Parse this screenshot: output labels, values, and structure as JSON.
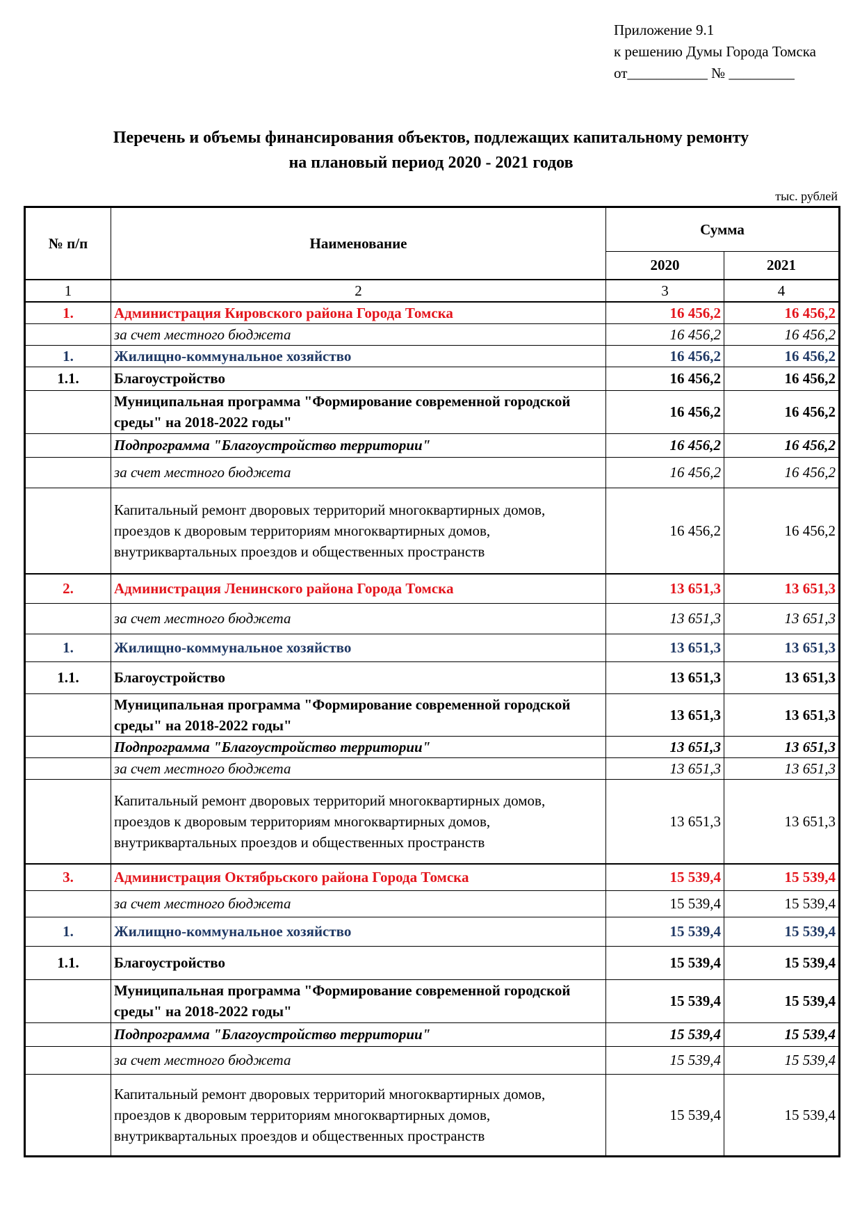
{
  "appendix": {
    "line1": "Приложение 9.1",
    "line2": "к решению Думы Города Томска",
    "line3": "от___________ № _________"
  },
  "title": {
    "line1": "Перечень и объемы финансирования объектов, подлежащих капитальному ремонту",
    "line2": "на плановый период 2020 - 2021 годов"
  },
  "unit": "тыс. рублей",
  "header": {
    "num": "№ п/п",
    "name": "Наименование",
    "sum": "Сумма",
    "y2020": "2020",
    "y2021": "2021",
    "c1": "1",
    "c2": "2",
    "c3": "3",
    "c4": "4"
  },
  "rows": [
    {
      "style": "red",
      "num": "1.",
      "name": "Администрация Кировского района Города Томска",
      "v2020": "16 456,2",
      "v2021": "16 456,2",
      "h": 28
    },
    {
      "style": "it",
      "num": "",
      "name": "за счет местного бюджета",
      "v2020": "16 456,2",
      "v2021": "16 456,2",
      "h": 28
    },
    {
      "style": "blue",
      "num": "1.",
      "name": "Жилищно-коммунальное хозяйство",
      "v2020": "16 456,2",
      "v2021": "16 456,2",
      "h": 28
    },
    {
      "style": "bold",
      "num": "1.1.",
      "name": "Благоустройство",
      "v2020": "16 456,2",
      "v2021": "16 456,2",
      "h": 34
    },
    {
      "style": "bold",
      "num": "",
      "name": "Муниципальная программа \"Формирование современной городской среды\" на 2018-2022 годы\"",
      "v2020": "16 456,2",
      "v2021": "16 456,2",
      "h": 62
    },
    {
      "style": "bi",
      "num": "",
      "name": "Подпрограмма \"Благоустройство территории\"",
      "v2020": "16 456,2",
      "v2021": "16 456,2",
      "h": 34
    },
    {
      "style": "it",
      "num": "",
      "name": "за счет местного бюджета",
      "v2020": "16 456,2",
      "v2021": "16 456,2",
      "h": 44
    },
    {
      "style": "plain",
      "num": "",
      "name": "Капитальный ремонт дворовых территорий многоквартирных домов, проездов к дворовым территориям многоквартирных домов, внутриквартальных проездов и общественных пространств",
      "v2020": "16 456,2",
      "v2021": "16 456,2",
      "h": 124
    },
    {
      "style": "red",
      "num": "2.",
      "name": "Администрация Ленинского района Города Томска",
      "v2020": "13 651,3",
      "v2021": "13 651,3",
      "h": 42
    },
    {
      "style": "it",
      "num": "",
      "name": "за счет местного бюджета",
      "v2020": "13 651,3",
      "v2021": "13 651,3",
      "h": 44
    },
    {
      "style": "blue",
      "num": "1.",
      "name": "Жилищно-коммунальное хозяйство",
      "v2020": "13 651,3",
      "v2021": "13 651,3",
      "h": 40
    },
    {
      "style": "bold",
      "num": "1.1.",
      "name": "Благоустройство",
      "v2020": "13 651,3",
      "v2021": "13 651,3",
      "h": 46
    },
    {
      "style": "bold",
      "num": "",
      "name": "Муниципальная программа \"Формирование современной городской среды\" на 2018-2022 годы\"",
      "v2020": "13 651,3",
      "v2021": "13 651,3",
      "h": 58
    },
    {
      "style": "bi",
      "num": "",
      "name": "Подпрограмма \"Благоустройство территории\"",
      "v2020": "13 651,3",
      "v2021": "13 651,3",
      "h": 30
    },
    {
      "style": "it",
      "num": "",
      "name": "за счет местного бюджета",
      "v2020": "13 651,3",
      "v2021": "13 651,3",
      "h": 28
    },
    {
      "style": "plain",
      "num": "",
      "name": "Капитальный ремонт дворовых территорий многоквартирных домов, проездов к дворовым территориям многоквартирных домов, внутриквартальных проездов и общественных пространств",
      "v2020": "13 651,3",
      "v2021": "13 651,3",
      "h": 122
    },
    {
      "style": "red",
      "num": "3.",
      "name": "Администрация Октябрьского района Города Томска",
      "v2020": "15 539,4",
      "v2021": "15 539,4",
      "h": 38
    },
    {
      "style": "it-plainnum",
      "num": "",
      "name": "за счет местного бюджета",
      "v2020": "15 539,4",
      "v2021": "15 539,4",
      "h": 38
    },
    {
      "style": "blue",
      "num": "1.",
      "name": "Жилищно-коммунальное хозяйство",
      "v2020": "15 539,4",
      "v2021": "15 539,4",
      "h": 42
    },
    {
      "style": "bold",
      "num": "1.1.",
      "name": "Благоустройство",
      "v2020": "15 539,4",
      "v2021": "15 539,4",
      "h": 48
    },
    {
      "style": "bold",
      "num": "",
      "name": "Муниципальная программа \"Формирование современной городской среды\" на 2018-2022 годы\"",
      "v2020": "15 539,4",
      "v2021": "15 539,4",
      "h": 62
    },
    {
      "style": "bi",
      "num": "",
      "name": "Подпрограмма \"Благоустройство территории\"",
      "v2020": "15 539,4",
      "v2021": "15 539,4",
      "h": 34
    },
    {
      "style": "it",
      "num": "",
      "name": "за счет местного бюджета",
      "v2020": "15 539,4",
      "v2021": "15 539,4",
      "h": 40
    },
    {
      "style": "plain",
      "num": "",
      "name": "Капитальный ремонт дворовых территорий многоквартирных домов, проездов к дворовым территориям многоквартирных домов, внутриквартальных проездов и общественных пространств",
      "v2020": "15 539,4",
      "v2021": "15 539,4",
      "h": 118
    }
  ]
}
